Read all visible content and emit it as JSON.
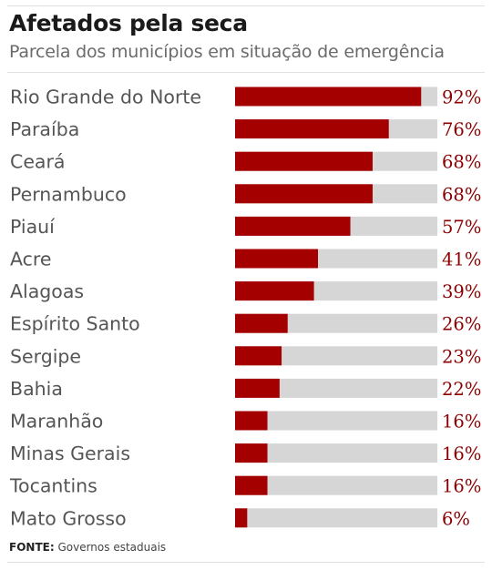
{
  "chart_data": {
    "type": "bar",
    "orientation": "horizontal",
    "title": "Afetados pela seca",
    "subtitle": "Parcela dos municípios em situação de emergência",
    "categories": [
      "Rio Grande do Norte",
      "Paraíba",
      "Ceará",
      "Pernambuco",
      "Piauí",
      "Acre",
      "Alagoas",
      "Espírito Santo",
      "Sergipe",
      "Bahia",
      "Maranhão",
      "Minas Gerais",
      "Tocantins",
      "Mato Grosso"
    ],
    "values": [
      92,
      76,
      68,
      68,
      57,
      41,
      39,
      26,
      23,
      22,
      16,
      16,
      16,
      6
    ],
    "value_labels": [
      "92%",
      "76%",
      "68%",
      "68%",
      "57%",
      "41%",
      "39%",
      "26%",
      "23%",
      "22%",
      "16%",
      "16%",
      "16%",
      "6%"
    ],
    "xlim": [
      0,
      100
    ],
    "colors": {
      "bar": "#a50000",
      "track": "#d6d6d6",
      "label": "#555555",
      "value": "#8b0000"
    }
  },
  "source": {
    "label": "FONTE:",
    "text": "Governos estaduais"
  }
}
